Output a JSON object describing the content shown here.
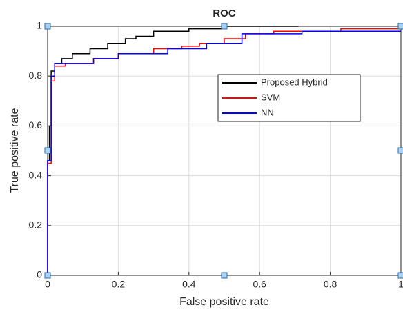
{
  "chart_data": {
    "type": "line",
    "title": "ROC",
    "x_label": "False positive rate",
    "y_label": "True positive rate",
    "xlim": [
      0,
      1
    ],
    "ylim": [
      0,
      1
    ],
    "xticks": [
      0,
      0.2,
      0.4,
      0.6,
      0.8,
      1
    ],
    "yticks": [
      0,
      0.2,
      0.4,
      0.6,
      0.8,
      1
    ],
    "grid": true,
    "series": [
      {
        "name": "Proposed  Hybrid",
        "color": "#000000",
        "x": [
          0,
          0,
          0.005,
          0.005,
          0.01,
          0.01,
          0.02,
          0.02,
          0.04,
          0.04,
          0.07,
          0.07,
          0.12,
          0.12,
          0.17,
          0.17,
          0.22,
          0.22,
          0.25,
          0.25,
          0.3,
          0.3,
          0.4,
          0.4,
          0.5,
          0.5,
          0.58,
          0.58,
          0.71
        ],
        "values": [
          0,
          0.46,
          0.46,
          0.6,
          0.6,
          0.82,
          0.82,
          0.85,
          0.85,
          0.87,
          0.87,
          0.89,
          0.89,
          0.91,
          0.91,
          0.93,
          0.93,
          0.95,
          0.95,
          0.96,
          0.96,
          0.98,
          0.98,
          0.99,
          0.99,
          1,
          1,
          1,
          1
        ]
      },
      {
        "name": "SVM",
        "color": "#ff0000",
        "x": [
          0,
          0,
          0.01,
          0.01,
          0.02,
          0.02,
          0.05,
          0.05,
          0.13,
          0.13,
          0.2,
          0.2,
          0.3,
          0.3,
          0.38,
          0.38,
          0.43,
          0.43,
          0.5,
          0.5,
          0.56,
          0.56,
          0.64,
          0.64,
          0.83,
          0.83,
          1
        ],
        "values": [
          0,
          0.45,
          0.45,
          0.78,
          0.78,
          0.84,
          0.84,
          0.85,
          0.85,
          0.87,
          0.87,
          0.89,
          0.89,
          0.91,
          0.91,
          0.92,
          0.92,
          0.93,
          0.93,
          0.95,
          0.95,
          0.97,
          0.97,
          0.98,
          0.98,
          0.99,
          0.99
        ]
      },
      {
        "name": "NN",
        "color": "#0000ff",
        "x": [
          0,
          0,
          0.01,
          0.01,
          0.02,
          0.02,
          0.13,
          0.13,
          0.2,
          0.2,
          0.34,
          0.34,
          0.45,
          0.45,
          0.55,
          0.55,
          0.72,
          0.72,
          1
        ],
        "values": [
          0,
          0.46,
          0.46,
          0.8,
          0.8,
          0.85,
          0.85,
          0.87,
          0.87,
          0.89,
          0.89,
          0.91,
          0.91,
          0.93,
          0.93,
          0.97,
          0.97,
          0.98,
          0.98
        ]
      }
    ]
  }
}
